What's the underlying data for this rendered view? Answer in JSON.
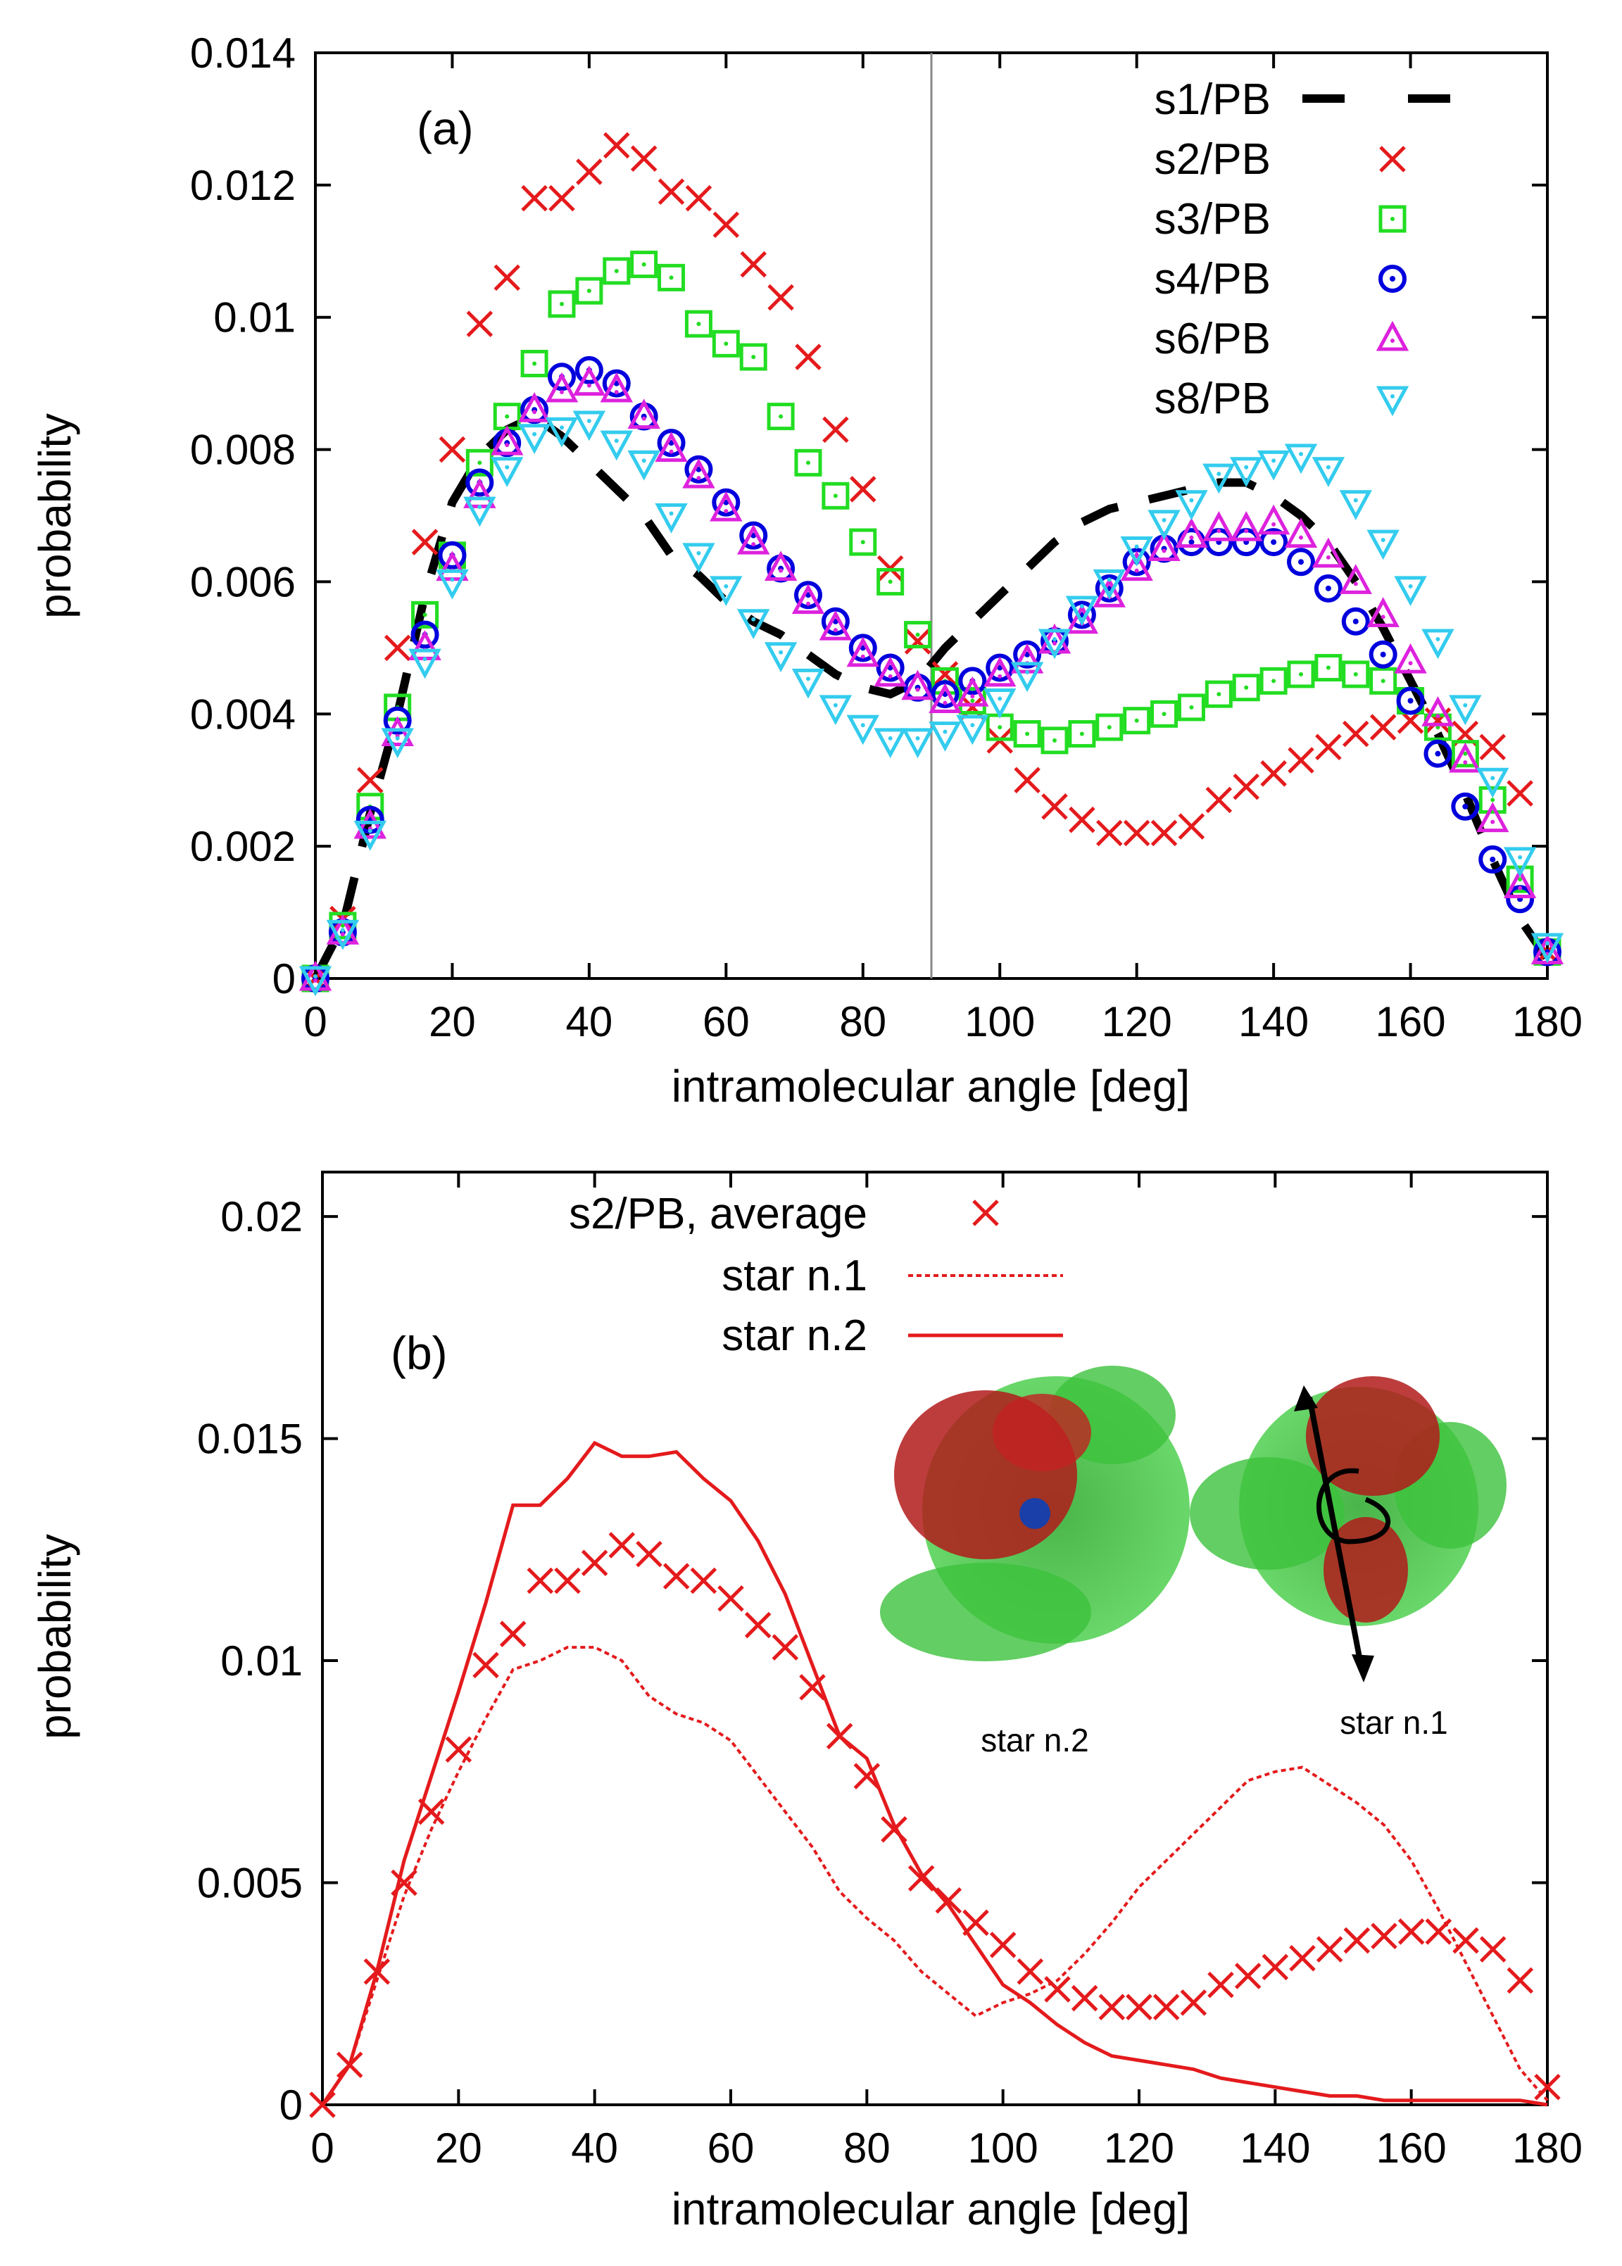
{
  "figure": {
    "panels": [
      {
        "id": "a",
        "panel_label": "(a)",
        "chart_data": {
          "type": "scatter",
          "xlabel": "intramolecular angle [deg]",
          "ylabel": "probability",
          "xlim": [
            0,
            180
          ],
          "ylim": [
            0,
            0.014
          ],
          "xticks": [
            0,
            20,
            40,
            60,
            80,
            100,
            120,
            140,
            160,
            180
          ],
          "xtick_labels": [
            "0",
            "20",
            "40",
            "60",
            "80",
            "100",
            "120",
            "140",
            "160",
            "180"
          ],
          "yticks": [
            0,
            0.002,
            0.004,
            0.006,
            0.008,
            0.01,
            0.012,
            0.014
          ],
          "ytick_labels": [
            "0",
            "0.002",
            "0.004",
            "0.006",
            "0.008",
            "0.01",
            "0.012",
            "0.014"
          ],
          "reference_line_x": 90,
          "x": [
            0,
            4,
            8,
            12,
            16,
            20,
            24,
            28,
            32,
            36,
            40,
            44,
            48,
            52,
            56,
            60,
            64,
            68,
            72,
            76,
            80,
            84,
            88,
            92,
            96,
            100,
            104,
            108,
            112,
            116,
            120,
            124,
            128,
            132,
            136,
            140,
            144,
            148,
            152,
            156,
            160,
            164,
            168,
            172,
            176,
            180
          ],
          "series": [
            {
              "name": "s1/PB",
              "style": "dashed",
              "color": "#000000",
              "values": [
                0,
                0.0008,
                0.0025,
                0.004,
                0.0058,
                0.0072,
                0.0079,
                0.0083,
                0.0085,
                0.0082,
                0.0078,
                0.0074,
                0.007,
                0.0064,
                0.0061,
                0.0057,
                0.0054,
                0.0052,
                0.0049,
                0.0046,
                0.0044,
                0.0043,
                0.0045,
                0.005,
                0.0054,
                0.0058,
                0.0062,
                0.0066,
                0.0069,
                0.0071,
                0.0072,
                0.0073,
                0.0074,
                0.0075,
                0.0075,
                0.0073,
                0.007,
                0.0066,
                0.006,
                0.0053,
                0.0045,
                0.0037,
                0.0028,
                0.0018,
                0.0009,
                0.0003
              ]
            },
            {
              "name": "s2/PB",
              "marker": "x",
              "color": "#e41a1c",
              "values": [
                0,
                0.0009,
                0.003,
                0.005,
                0.0066,
                0.008,
                0.0099,
                0.0106,
                0.0118,
                0.0118,
                0.0122,
                0.0126,
                0.0124,
                0.0119,
                0.0118,
                0.0114,
                0.0108,
                0.0103,
                0.0094,
                0.0083,
                0.0074,
                0.0062,
                0.0051,
                0.0046,
                0.0041,
                0.0036,
                0.003,
                0.0026,
                0.0024,
                0.0022,
                0.0022,
                0.0022,
                0.0023,
                0.0027,
                0.0029,
                0.0031,
                0.0033,
                0.0035,
                0.0037,
                0.0038,
                0.0039,
                0.0039,
                0.0037,
                0.0035,
                0.0028,
                0.0004
              ]
            },
            {
              "name": "s3/PB",
              "marker": "square",
              "color": "#22dd22",
              "values": [
                0,
                0.0008,
                0.0026,
                0.0041,
                0.0055,
                0.0064,
                0.0078,
                0.0085,
                0.0093,
                0.0102,
                0.0104,
                0.0107,
                0.0108,
                0.0106,
                0.0099,
                0.0096,
                0.0094,
                0.0085,
                0.0078,
                0.0073,
                0.0066,
                0.006,
                0.0052,
                0.0045,
                0.0042,
                0.0038,
                0.0037,
                0.0036,
                0.0037,
                0.0038,
                0.0039,
                0.004,
                0.0041,
                0.0043,
                0.0044,
                0.0045,
                0.0046,
                0.0047,
                0.0046,
                0.0045,
                0.0042,
                0.0038,
                0.0034,
                0.0027,
                0.0015,
                0.0004
              ]
            },
            {
              "name": "s4/PB",
              "marker": "dotted-circle",
              "color": "#0000dd",
              "values": [
                0,
                0.0007,
                0.0024,
                0.0039,
                0.0052,
                0.0064,
                0.0075,
                0.0081,
                0.0086,
                0.0091,
                0.0092,
                0.009,
                0.0085,
                0.0081,
                0.0077,
                0.0072,
                0.0067,
                0.0062,
                0.0058,
                0.0054,
                0.005,
                0.0047,
                0.0044,
                0.0043,
                0.0045,
                0.0047,
                0.0049,
                0.0051,
                0.0055,
                0.0059,
                0.0063,
                0.0065,
                0.0066,
                0.0066,
                0.0066,
                0.0066,
                0.0063,
                0.0059,
                0.0054,
                0.0049,
                0.0042,
                0.0034,
                0.0026,
                0.0018,
                0.0012,
                0.0004
              ]
            },
            {
              "name": "s6/PB",
              "marker": "triangle-up",
              "color": "#dd22dd",
              "values": [
                0,
                0.0007,
                0.0023,
                0.0037,
                0.005,
                0.0062,
                0.0073,
                0.0081,
                0.0086,
                0.0089,
                0.009,
                0.0089,
                0.0085,
                0.008,
                0.0076,
                0.0071,
                0.0066,
                0.0062,
                0.0057,
                0.0053,
                0.0049,
                0.0046,
                0.0044,
                0.0042,
                0.0043,
                0.0046,
                0.0048,
                0.0051,
                0.0054,
                0.0058,
                0.0062,
                0.0065,
                0.0067,
                0.0068,
                0.0068,
                0.0069,
                0.0067,
                0.0064,
                0.006,
                0.0055,
                0.0048,
                0.004,
                0.0033,
                0.0024,
                0.0014,
                0.0004
              ]
            },
            {
              "name": "s8/PB",
              "marker": "triangle-down",
              "color": "#33ccee",
              "values": [
                0,
                0.0007,
                0.0022,
                0.0036,
                0.0048,
                0.006,
                0.0071,
                0.0077,
                0.0082,
                0.0083,
                0.0084,
                0.0081,
                0.0078,
                0.007,
                0.0064,
                0.0059,
                0.0054,
                0.0049,
                0.0045,
                0.0041,
                0.0038,
                0.0036,
                0.0036,
                0.0037,
                0.0038,
                0.0042,
                0.0046,
                0.0051,
                0.0056,
                0.006,
                0.0065,
                0.0069,
                0.0072,
                0.0076,
                0.0077,
                0.0078,
                0.0079,
                0.0077,
                0.0072,
                0.0066,
                0.0059,
                0.0051,
                0.0041,
                0.003,
                0.0018,
                0.0005
              ]
            }
          ]
        }
      },
      {
        "id": "b",
        "panel_label": "(b)",
        "chart_data": {
          "type": "line",
          "xlabel": "intramolecular angle [deg]",
          "ylabel": "probability",
          "xlim": [
            0,
            180
          ],
          "ylim": [
            0,
            0.021
          ],
          "xticks": [
            0,
            20,
            40,
            60,
            80,
            100,
            120,
            140,
            160,
            180
          ],
          "xtick_labels": [
            "0",
            "20",
            "40",
            "60",
            "80",
            "100",
            "120",
            "140",
            "160",
            "180"
          ],
          "yticks": [
            0,
            0.005,
            0.01,
            0.015,
            0.02
          ],
          "ytick_labels": [
            "0",
            "0.005",
            "0.01",
            "0.015",
            "0.02"
          ],
          "x": [
            0,
            4,
            8,
            12,
            16,
            20,
            24,
            28,
            32,
            36,
            40,
            44,
            48,
            52,
            56,
            60,
            64,
            68,
            72,
            76,
            80,
            84,
            88,
            92,
            96,
            100,
            104,
            108,
            112,
            116,
            120,
            124,
            128,
            132,
            136,
            140,
            144,
            148,
            152,
            156,
            160,
            164,
            168,
            172,
            176,
            180
          ],
          "series": [
            {
              "name": "s2/PB, average",
              "marker": "x",
              "color": "#e41a1c",
              "values": [
                0,
                0.0009,
                0.003,
                0.005,
                0.0066,
                0.008,
                0.0099,
                0.0106,
                0.0118,
                0.0118,
                0.0122,
                0.0126,
                0.0124,
                0.0119,
                0.0118,
                0.0114,
                0.0108,
                0.0103,
                0.0094,
                0.0083,
                0.0074,
                0.0062,
                0.0051,
                0.0046,
                0.0041,
                0.0036,
                0.003,
                0.0026,
                0.0024,
                0.0022,
                0.0022,
                0.0022,
                0.0023,
                0.0027,
                0.0029,
                0.0031,
                0.0033,
                0.0035,
                0.0037,
                0.0038,
                0.0039,
                0.0039,
                0.0037,
                0.0035,
                0.0028,
                0.0004
              ]
            },
            {
              "name": "star n.1",
              "style": "dotted",
              "color": "#e41a1c",
              "values": [
                0,
                0.0009,
                0.0028,
                0.0047,
                0.0062,
                0.0075,
                0.0087,
                0.0098,
                0.01,
                0.0103,
                0.0103,
                0.01,
                0.0092,
                0.0088,
                0.0086,
                0.0082,
                0.0074,
                0.0066,
                0.0058,
                0.0048,
                0.0042,
                0.0037,
                0.003,
                0.0025,
                0.002,
                0.0023,
                0.0025,
                0.0028,
                0.0034,
                0.0041,
                0.0049,
                0.0055,
                0.0061,
                0.0067,
                0.0073,
                0.0075,
                0.0076,
                0.0072,
                0.0068,
                0.0063,
                0.0055,
                0.0044,
                0.0032,
                0.002,
                0.0008,
                0.0001
              ]
            },
            {
              "name": "star n.2",
              "style": "solid",
              "color": "#e41a1c",
              "values": [
                0,
                0.0009,
                0.003,
                0.0055,
                0.0074,
                0.0093,
                0.0113,
                0.0135,
                0.0135,
                0.0141,
                0.0149,
                0.0146,
                0.0146,
                0.0147,
                0.0141,
                0.0136,
                0.0127,
                0.0115,
                0.0099,
                0.0083,
                0.0078,
                0.0063,
                0.0052,
                0.0045,
                0.0036,
                0.0027,
                0.0023,
                0.0018,
                0.0014,
                0.0011,
                0.001,
                0.0009,
                0.0008,
                0.0006,
                0.0005,
                0.0004,
                0.0003,
                0.0002,
                0.0002,
                0.0001,
                0.0001,
                0.0001,
                0.0001,
                0.0001,
                0.0001,
                0
              ]
            }
          ],
          "insets": [
            {
              "caption": "star n.2"
            },
            {
              "caption": "star n.1"
            }
          ]
        }
      }
    ]
  }
}
